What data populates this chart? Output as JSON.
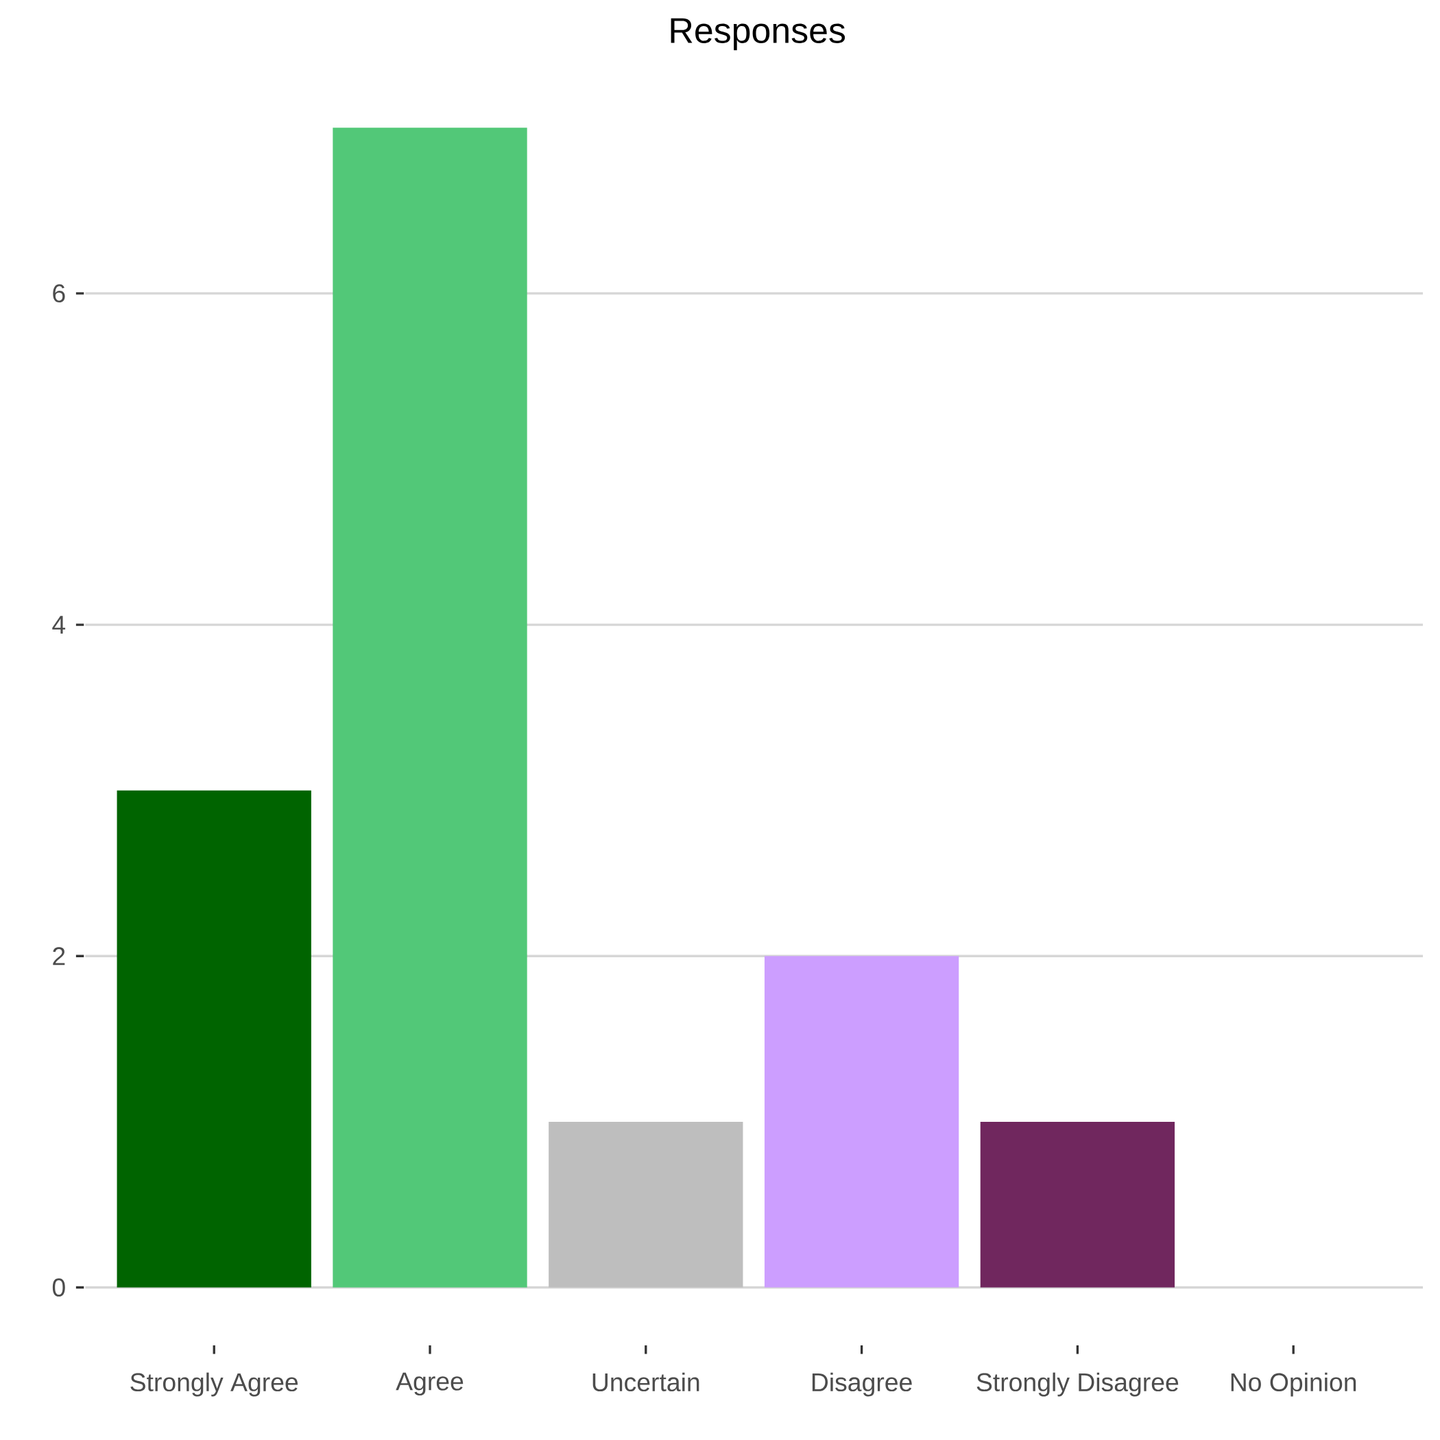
{
  "chart_data": {
    "type": "bar",
    "title": "Responses",
    "categories": [
      "Strongly Agree",
      "Agree",
      "Uncertain",
      "Disagree",
      "Strongly Disagree",
      "No Opinion"
    ],
    "values": [
      3,
      7,
      1,
      2,
      1,
      0
    ],
    "colors": [
      "#006400",
      "#52c878",
      "#bebebe",
      "#cc9eff",
      "#70275e",
      "#a0a0a0"
    ],
    "ylim": [
      -0.35,
      7.35
    ],
    "yticks": [
      0,
      2,
      4,
      6
    ],
    "grid": "y"
  }
}
